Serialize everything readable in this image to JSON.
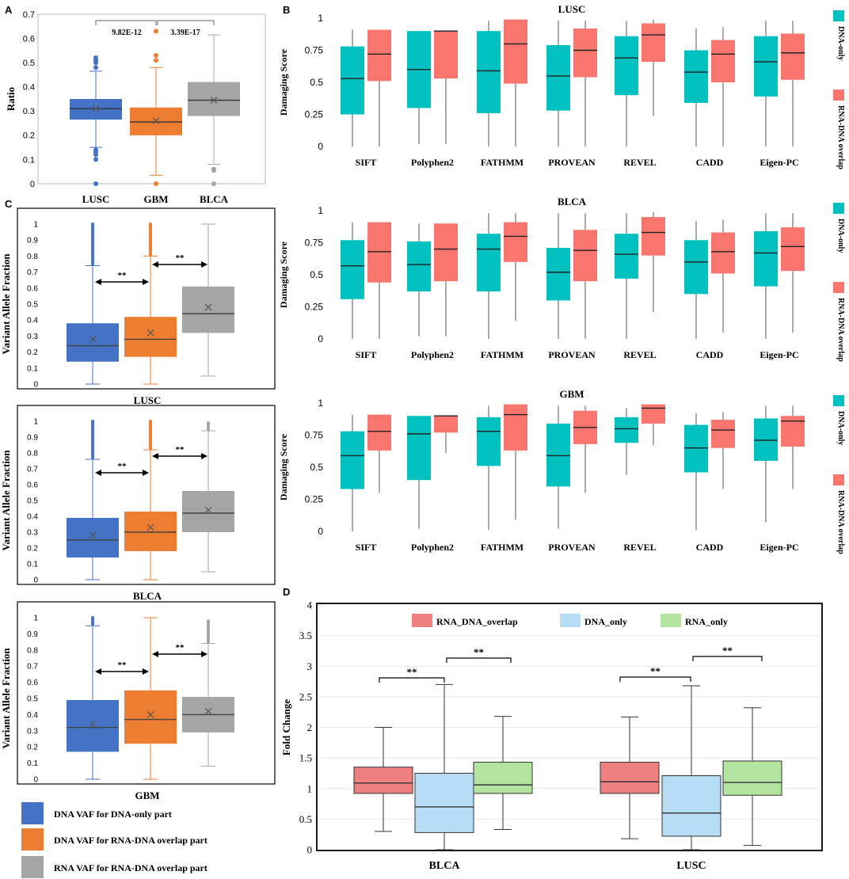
{
  "panels": {
    "A": "A",
    "B": "B",
    "C": "C",
    "D": "D"
  },
  "colors": {
    "blue": "#4472c4",
    "orange": "#ed7d31",
    "gray": "#a5a5a5",
    "teal": "#00c0c0",
    "salmon": "#f8766d",
    "pink": "#f08080",
    "lightblue": "#b7dcf5",
    "lightgreen": "#b3e5a1"
  },
  "chart_data": [
    {
      "id": "A",
      "type": "box",
      "ylabel": "Ratio",
      "ylim": [
        0,
        0.7
      ],
      "yticks": [
        0,
        0.1,
        0.2,
        0.3,
        0.4,
        0.5,
        0.6,
        0.7
      ],
      "ytick_labels": [
        "0",
        "0.1",
        "0.2",
        "0.3",
        "0.4",
        "0.5",
        "0.6",
        "0.7"
      ],
      "categories": [
        "LUSC",
        "GBM",
        "BLCA"
      ],
      "series": [
        {
          "name": "LUSC",
          "color": "#4472c4",
          "boxes": [
            {
              "min": 0.15,
              "q1": 0.265,
              "median": 0.31,
              "q3": 0.35,
              "max": 0.465,
              "mean": 0.31,
              "outliers": [
                0.0,
                0.1,
                0.12,
                0.13,
                0.14,
                0.48,
                0.5,
                0.51,
                0.52
              ]
            }
          ]
        },
        {
          "name": "GBM",
          "color": "#ed7d31",
          "boxes": [
            {
              "min": 0.035,
              "q1": 0.2,
              "median": 0.255,
              "q3": 0.315,
              "max": 0.48,
              "mean": 0.26,
              "outliers": [
                0.0,
                0.51,
                0.53,
                0.63
              ]
            }
          ]
        },
        {
          "name": "BLCA",
          "color": "#a5a5a5",
          "boxes": [
            {
              "min": 0.08,
              "q1": 0.28,
              "median": 0.345,
              "q3": 0.42,
              "max": 0.615,
              "mean": 0.345,
              "outliers": [
                0.0,
                0.055,
                0.06
              ]
            }
          ]
        }
      ],
      "annotations": [
        "9.82E-12",
        "3.39E-17"
      ]
    },
    {
      "id": "B-LUSC",
      "type": "box",
      "title": "LUSC",
      "ylabel": "Damaging Score",
      "ylim": [
        0,
        1
      ],
      "yticks": [
        0,
        0.25,
        0.5,
        0.75,
        1
      ],
      "ytick_labels": [
        "0",
        "0.25",
        "0.5",
        "0.75",
        "1"
      ],
      "categories": [
        "SIFT",
        "Polyphen2",
        "FATHMM",
        "PROVEAN",
        "REVEL",
        "CADD",
        "Eigen-PC"
      ],
      "legend": [
        "DNA-only",
        "RNA-DNA overlap"
      ],
      "series": [
        {
          "name": "DNA-only",
          "color": "#00c0c0",
          "boxes": [
            {
              "min": 0,
              "q1": 0.25,
              "median": 0.53,
              "q3": 0.78,
              "max": 0.91
            },
            {
              "min": 0.02,
              "q1": 0.3,
              "median": 0.6,
              "q3": 0.9,
              "max": 0.9
            },
            {
              "min": 0,
              "q1": 0.26,
              "median": 0.59,
              "q3": 0.9,
              "max": 0.98
            },
            {
              "min": 0,
              "q1": 0.28,
              "median": 0.55,
              "q3": 0.79,
              "max": 0.98
            },
            {
              "min": 0,
              "q1": 0.4,
              "median": 0.69,
              "q3": 0.86,
              "max": 0.98
            },
            {
              "min": 0,
              "q1": 0.34,
              "median": 0.58,
              "q3": 0.75,
              "max": 0.92
            },
            {
              "min": 0,
              "q1": 0.39,
              "median": 0.66,
              "q3": 0.86,
              "max": 0.98
            }
          ]
        },
        {
          "name": "RNA-DNA overlap",
          "color": "#f8766d",
          "boxes": [
            {
              "min": 0,
              "q1": 0.51,
              "median": 0.72,
              "q3": 0.91,
              "max": 0.91
            },
            {
              "min": 0.02,
              "q1": 0.53,
              "median": 0.9,
              "q3": 0.9,
              "max": 0.9
            },
            {
              "min": 0,
              "q1": 0.49,
              "median": 0.8,
              "q3": 0.99,
              "max": 0.99
            },
            {
              "min": 0,
              "q1": 0.54,
              "median": 0.75,
              "q3": 0.92,
              "max": 0.98
            },
            {
              "min": 0.24,
              "q1": 0.66,
              "median": 0.87,
              "q3": 0.96,
              "max": 0.99
            },
            {
              "min": 0,
              "q1": 0.5,
              "median": 0.72,
              "q3": 0.83,
              "max": 0.93
            },
            {
              "min": 0,
              "q1": 0.52,
              "median": 0.73,
              "q3": 0.88,
              "max": 0.98
            }
          ]
        }
      ]
    },
    {
      "id": "B-BLCA",
      "type": "box",
      "title": "BLCA",
      "ylabel": "Damaging Score",
      "ylim": [
        0,
        1
      ],
      "yticks": [
        0,
        0.25,
        0.5,
        0.75,
        1
      ],
      "ytick_labels": [
        "0",
        "0.25",
        "0.5",
        "0.75",
        "1"
      ],
      "categories": [
        "SIFT",
        "Polyphen2",
        "FATHMM",
        "PROVEAN",
        "REVEL",
        "CADD",
        "Eigen-PC"
      ],
      "legend": [
        "DNA-only",
        "RNA-DNA overlap"
      ],
      "series": [
        {
          "name": "DNA-only",
          "color": "#00c0c0",
          "boxes": [
            {
              "min": 0,
              "q1": 0.31,
              "median": 0.57,
              "q3": 0.77,
              "max": 0.91
            },
            {
              "min": 0.02,
              "q1": 0.37,
              "median": 0.58,
              "q3": 0.76,
              "max": 0.9
            },
            {
              "min": 0,
              "q1": 0.37,
              "median": 0.7,
              "q3": 0.82,
              "max": 0.98
            },
            {
              "min": 0,
              "q1": 0.3,
              "median": 0.52,
              "q3": 0.71,
              "max": 0.98
            },
            {
              "min": 0,
              "q1": 0.47,
              "median": 0.66,
              "q3": 0.82,
              "max": 0.98
            },
            {
              "min": 0,
              "q1": 0.35,
              "median": 0.6,
              "q3": 0.77,
              "max": 0.92
            },
            {
              "min": 0,
              "q1": 0.41,
              "median": 0.67,
              "q3": 0.84,
              "max": 0.98
            }
          ]
        },
        {
          "name": "RNA-DNA overlap",
          "color": "#f8766d",
          "boxes": [
            {
              "min": 0,
              "q1": 0.44,
              "median": 0.68,
              "q3": 0.91,
              "max": 0.91
            },
            {
              "min": 0.02,
              "q1": 0.45,
              "median": 0.7,
              "q3": 0.9,
              "max": 0.9
            },
            {
              "min": 0.14,
              "q1": 0.6,
              "median": 0.8,
              "q3": 0.91,
              "max": 0.98
            },
            {
              "min": 0,
              "q1": 0.45,
              "median": 0.69,
              "q3": 0.85,
              "max": 0.98
            },
            {
              "min": 0.21,
              "q1": 0.65,
              "median": 0.83,
              "q3": 0.95,
              "max": 0.99
            },
            {
              "min": 0.05,
              "q1": 0.51,
              "median": 0.68,
              "q3": 0.83,
              "max": 0.93
            },
            {
              "min": 0.05,
              "q1": 0.53,
              "median": 0.72,
              "q3": 0.87,
              "max": 0.98
            }
          ]
        }
      ]
    },
    {
      "id": "B-GBM",
      "type": "box",
      "title": "GBM",
      "ylabel": "Damaging Score",
      "ylim": [
        0,
        1
      ],
      "yticks": [
        0,
        0.25,
        0.5,
        0.75,
        1
      ],
      "ytick_labels": [
        "0",
        "0.25",
        "0.5",
        "0.75",
        "1"
      ],
      "categories": [
        "SIFT",
        "Polyphen2",
        "FATHMM",
        "PROVEAN",
        "REVEL",
        "CADD",
        "Eigen-PC"
      ],
      "legend": [
        "DNA-only",
        "RNA-DNA overlap"
      ],
      "series": [
        {
          "name": "DNA-only",
          "color": "#00c0c0",
          "boxes": [
            {
              "min": 0,
              "q1": 0.33,
              "median": 0.59,
              "q3": 0.78,
              "max": 0.91
            },
            {
              "min": 0.02,
              "q1": 0.4,
              "median": 0.76,
              "q3": 0.9,
              "max": 0.9
            },
            {
              "min": 0.01,
              "q1": 0.51,
              "median": 0.78,
              "q3": 0.89,
              "max": 0.98
            },
            {
              "min": 0.02,
              "q1": 0.35,
              "median": 0.59,
              "q3": 0.84,
              "max": 0.98
            },
            {
              "min": 0.44,
              "q1": 0.69,
              "median": 0.8,
              "q3": 0.89,
              "max": 0.96
            },
            {
              "min": 0.01,
              "q1": 0.46,
              "median": 0.65,
              "q3": 0.83,
              "max": 0.92
            },
            {
              "min": 0.07,
              "q1": 0.55,
              "median": 0.71,
              "q3": 0.88,
              "max": 0.98
            }
          ]
        },
        {
          "name": "RNA-DNA overlap",
          "color": "#f8766d",
          "boxes": [
            {
              "min": 0.3,
              "q1": 0.63,
              "median": 0.78,
              "q3": 0.91,
              "max": 0.91
            },
            {
              "min": 0.61,
              "q1": 0.77,
              "median": 0.9,
              "q3": 0.9,
              "max": 0.9
            },
            {
              "min": 0.09,
              "q1": 0.63,
              "median": 0.91,
              "q3": 0.99,
              "max": 0.99
            },
            {
              "min": 0.3,
              "q1": 0.68,
              "median": 0.81,
              "q3": 0.94,
              "max": 0.98
            },
            {
              "min": 0.67,
              "q1": 0.84,
              "median": 0.96,
              "q3": 0.99,
              "max": 0.99
            },
            {
              "min": 0.33,
              "q1": 0.65,
              "median": 0.79,
              "q3": 0.87,
              "max": 0.93
            },
            {
              "min": 0.33,
              "q1": 0.66,
              "median": 0.86,
              "q3": 0.9,
              "max": 0.98
            }
          ]
        }
      ]
    },
    {
      "id": "C-LUSC",
      "type": "box",
      "xlabel": "LUSC",
      "ylabel": "Variant Allele Fraction",
      "ylim": [
        0,
        1
      ],
      "yticks": [
        0,
        0.1,
        0.2,
        0.3,
        0.4,
        0.5,
        0.6,
        0.7,
        0.8,
        0.9,
        1
      ],
      "ytick_labels": [
        "0",
        "0.1",
        "0.2",
        "0.3",
        "0.4",
        "0.5",
        "0.6",
        "0.7",
        "0.8",
        "0.9",
        "1"
      ],
      "categories": [
        "DNA VAF for DNA-only part",
        "DNA VAF for RNA-DNA overlap part",
        "RNA VAF for RNA-DNA overlap part"
      ],
      "series": [
        {
          "name": "DNA VAF for DNA-only part",
          "color": "#4472c4",
          "boxes": [
            {
              "min": 0,
              "q1": 0.14,
              "median": 0.24,
              "q3": 0.38,
              "max": 0.74,
              "mean": 0.28,
              "outliers_range": [
                0.75,
                1.0
              ]
            }
          ]
        },
        {
          "name": "DNA VAF for RNA-DNA overlap part",
          "color": "#ed7d31",
          "boxes": [
            {
              "min": 0,
              "q1": 0.17,
              "median": 0.28,
              "q3": 0.42,
              "max": 0.8,
              "mean": 0.32,
              "outliers_range": [
                0.81,
                1.0
              ]
            }
          ]
        },
        {
          "name": "RNA VAF for RNA-DNA overlap part",
          "color": "#a5a5a5",
          "boxes": [
            {
              "min": 0.05,
              "q1": 0.32,
              "median": 0.44,
              "q3": 0.61,
              "max": 1.0,
              "mean": 0.48
            }
          ]
        }
      ],
      "annotations": [
        "**",
        "**"
      ]
    },
    {
      "id": "C-BLCA",
      "type": "box",
      "xlabel": "BLCA",
      "ylabel": "Variant Allele Fraction",
      "ylim": [
        0,
        1
      ],
      "yticks": [
        0,
        0.1,
        0.2,
        0.3,
        0.4,
        0.5,
        0.6,
        0.7,
        0.8,
        0.9,
        1
      ],
      "ytick_labels": [
        "0",
        "0.1",
        "0.2",
        "0.3",
        "0.4",
        "0.5",
        "0.6",
        "0.7",
        "0.8",
        "0.9",
        "1"
      ],
      "categories": [
        "DNA VAF for DNA-only part",
        "DNA VAF for RNA-DNA overlap part",
        "RNA VAF for RNA-DNA overlap part"
      ],
      "series": [
        {
          "name": "DNA VAF for DNA-only part",
          "color": "#4472c4",
          "boxes": [
            {
              "min": 0,
              "q1": 0.14,
              "median": 0.25,
              "q3": 0.39,
              "max": 0.76,
              "mean": 0.28,
              "outliers_range": [
                0.77,
                1.0
              ]
            }
          ]
        },
        {
          "name": "DNA VAF for RNA-DNA overlap part",
          "color": "#ed7d31",
          "boxes": [
            {
              "min": 0,
              "q1": 0.18,
              "median": 0.3,
              "q3": 0.43,
              "max": 0.82,
              "mean": 0.33,
              "outliers_range": [
                0.83,
                1.0
              ]
            }
          ]
        },
        {
          "name": "RNA VAF for RNA-DNA overlap part",
          "color": "#a5a5a5",
          "boxes": [
            {
              "min": 0.05,
              "q1": 0.3,
              "median": 0.42,
              "q3": 0.56,
              "max": 0.94,
              "mean": 0.44,
              "outliers_range": [
                0.95,
                0.99
              ]
            }
          ]
        }
      ],
      "annotations": [
        "**",
        "**"
      ]
    },
    {
      "id": "C-GBM",
      "type": "box",
      "xlabel": "GBM",
      "ylabel": "Variant Allele Fraction",
      "ylim": [
        0,
        1
      ],
      "yticks": [
        0,
        0.1,
        0.2,
        0.3,
        0.4,
        0.5,
        0.6,
        0.7,
        0.8,
        0.9,
        1
      ],
      "ytick_labels": [
        "0",
        "0.1",
        "0.2",
        "0.3",
        "0.4",
        "0.5",
        "0.6",
        "0.7",
        "0.8",
        "0.9",
        "1"
      ],
      "categories": [
        "DNA VAF for DNA-only part",
        "DNA VAF for RNA-DNA overlap part",
        "RNA VAF for RNA-DNA overlap part"
      ],
      "series": [
        {
          "name": "DNA VAF for DNA-only part",
          "color": "#4472c4",
          "boxes": [
            {
              "min": 0,
              "q1": 0.17,
              "median": 0.32,
              "q3": 0.49,
              "max": 0.95,
              "mean": 0.34,
              "outliers_range": [
                0.96,
                1.0
              ]
            }
          ]
        },
        {
          "name": "DNA VAF for RNA-DNA overlap part",
          "color": "#ed7d31",
          "boxes": [
            {
              "min": 0,
              "q1": 0.22,
              "median": 0.37,
              "q3": 0.55,
              "max": 1.0,
              "mean": 0.4
            }
          ]
        },
        {
          "name": "RNA VAF for RNA-DNA overlap part",
          "color": "#a5a5a5",
          "boxes": [
            {
              "min": 0.08,
              "q1": 0.29,
              "median": 0.4,
              "q3": 0.51,
              "max": 0.84,
              "mean": 0.42,
              "outliers_range": [
                0.85,
                0.98
              ]
            }
          ]
        }
      ],
      "annotations": [
        "**",
        "**"
      ]
    },
    {
      "id": "D",
      "type": "box",
      "ylabel": "Fold Change",
      "ylim": [
        0,
        4
      ],
      "yticks": [
        0,
        0.5,
        1,
        1.5,
        2,
        2.5,
        3,
        3.5,
        4
      ],
      "ytick_labels": [
        "0",
        "0.5",
        "1",
        "1.5",
        "2",
        "2.5",
        "3",
        "3.5",
        "4"
      ],
      "categories": [
        "BLCA",
        "LUSC"
      ],
      "legend": [
        "RNA_DNA_overlap",
        "DNA_only",
        "RNA_only"
      ],
      "series": [
        {
          "name": "RNA_DNA_overlap",
          "color": "#f08080",
          "boxes": [
            {
              "min": 0.3,
              "q1": 0.92,
              "median": 1.09,
              "q3": 1.35,
              "max": 2.0
            },
            {
              "min": 0.18,
              "q1": 0.92,
              "median": 1.11,
              "q3": 1.43,
              "max": 2.17
            }
          ]
        },
        {
          "name": "DNA_only",
          "color": "#b7dcf5",
          "boxes": [
            {
              "min": 0.0,
              "q1": 0.28,
              "median": 0.7,
              "q3": 1.25,
              "max": 2.7
            },
            {
              "min": 0.0,
              "q1": 0.22,
              "median": 0.6,
              "q3": 1.21,
              "max": 2.68
            }
          ]
        },
        {
          "name": "RNA_only",
          "color": "#b3e5a1",
          "boxes": [
            {
              "min": 0.33,
              "q1": 0.92,
              "median": 1.06,
              "q3": 1.43,
              "max": 2.18
            },
            {
              "min": 0.07,
              "q1": 0.89,
              "median": 1.1,
              "q3": 1.45,
              "max": 2.32
            }
          ]
        }
      ],
      "annotations": [
        "**",
        "**",
        "**",
        "**"
      ]
    }
  ],
  "c_legend": [
    "DNA VAF for DNA-only part",
    "DNA VAF for RNA-DNA overlap part",
    "RNA VAF for RNA-DNA overlap part"
  ]
}
